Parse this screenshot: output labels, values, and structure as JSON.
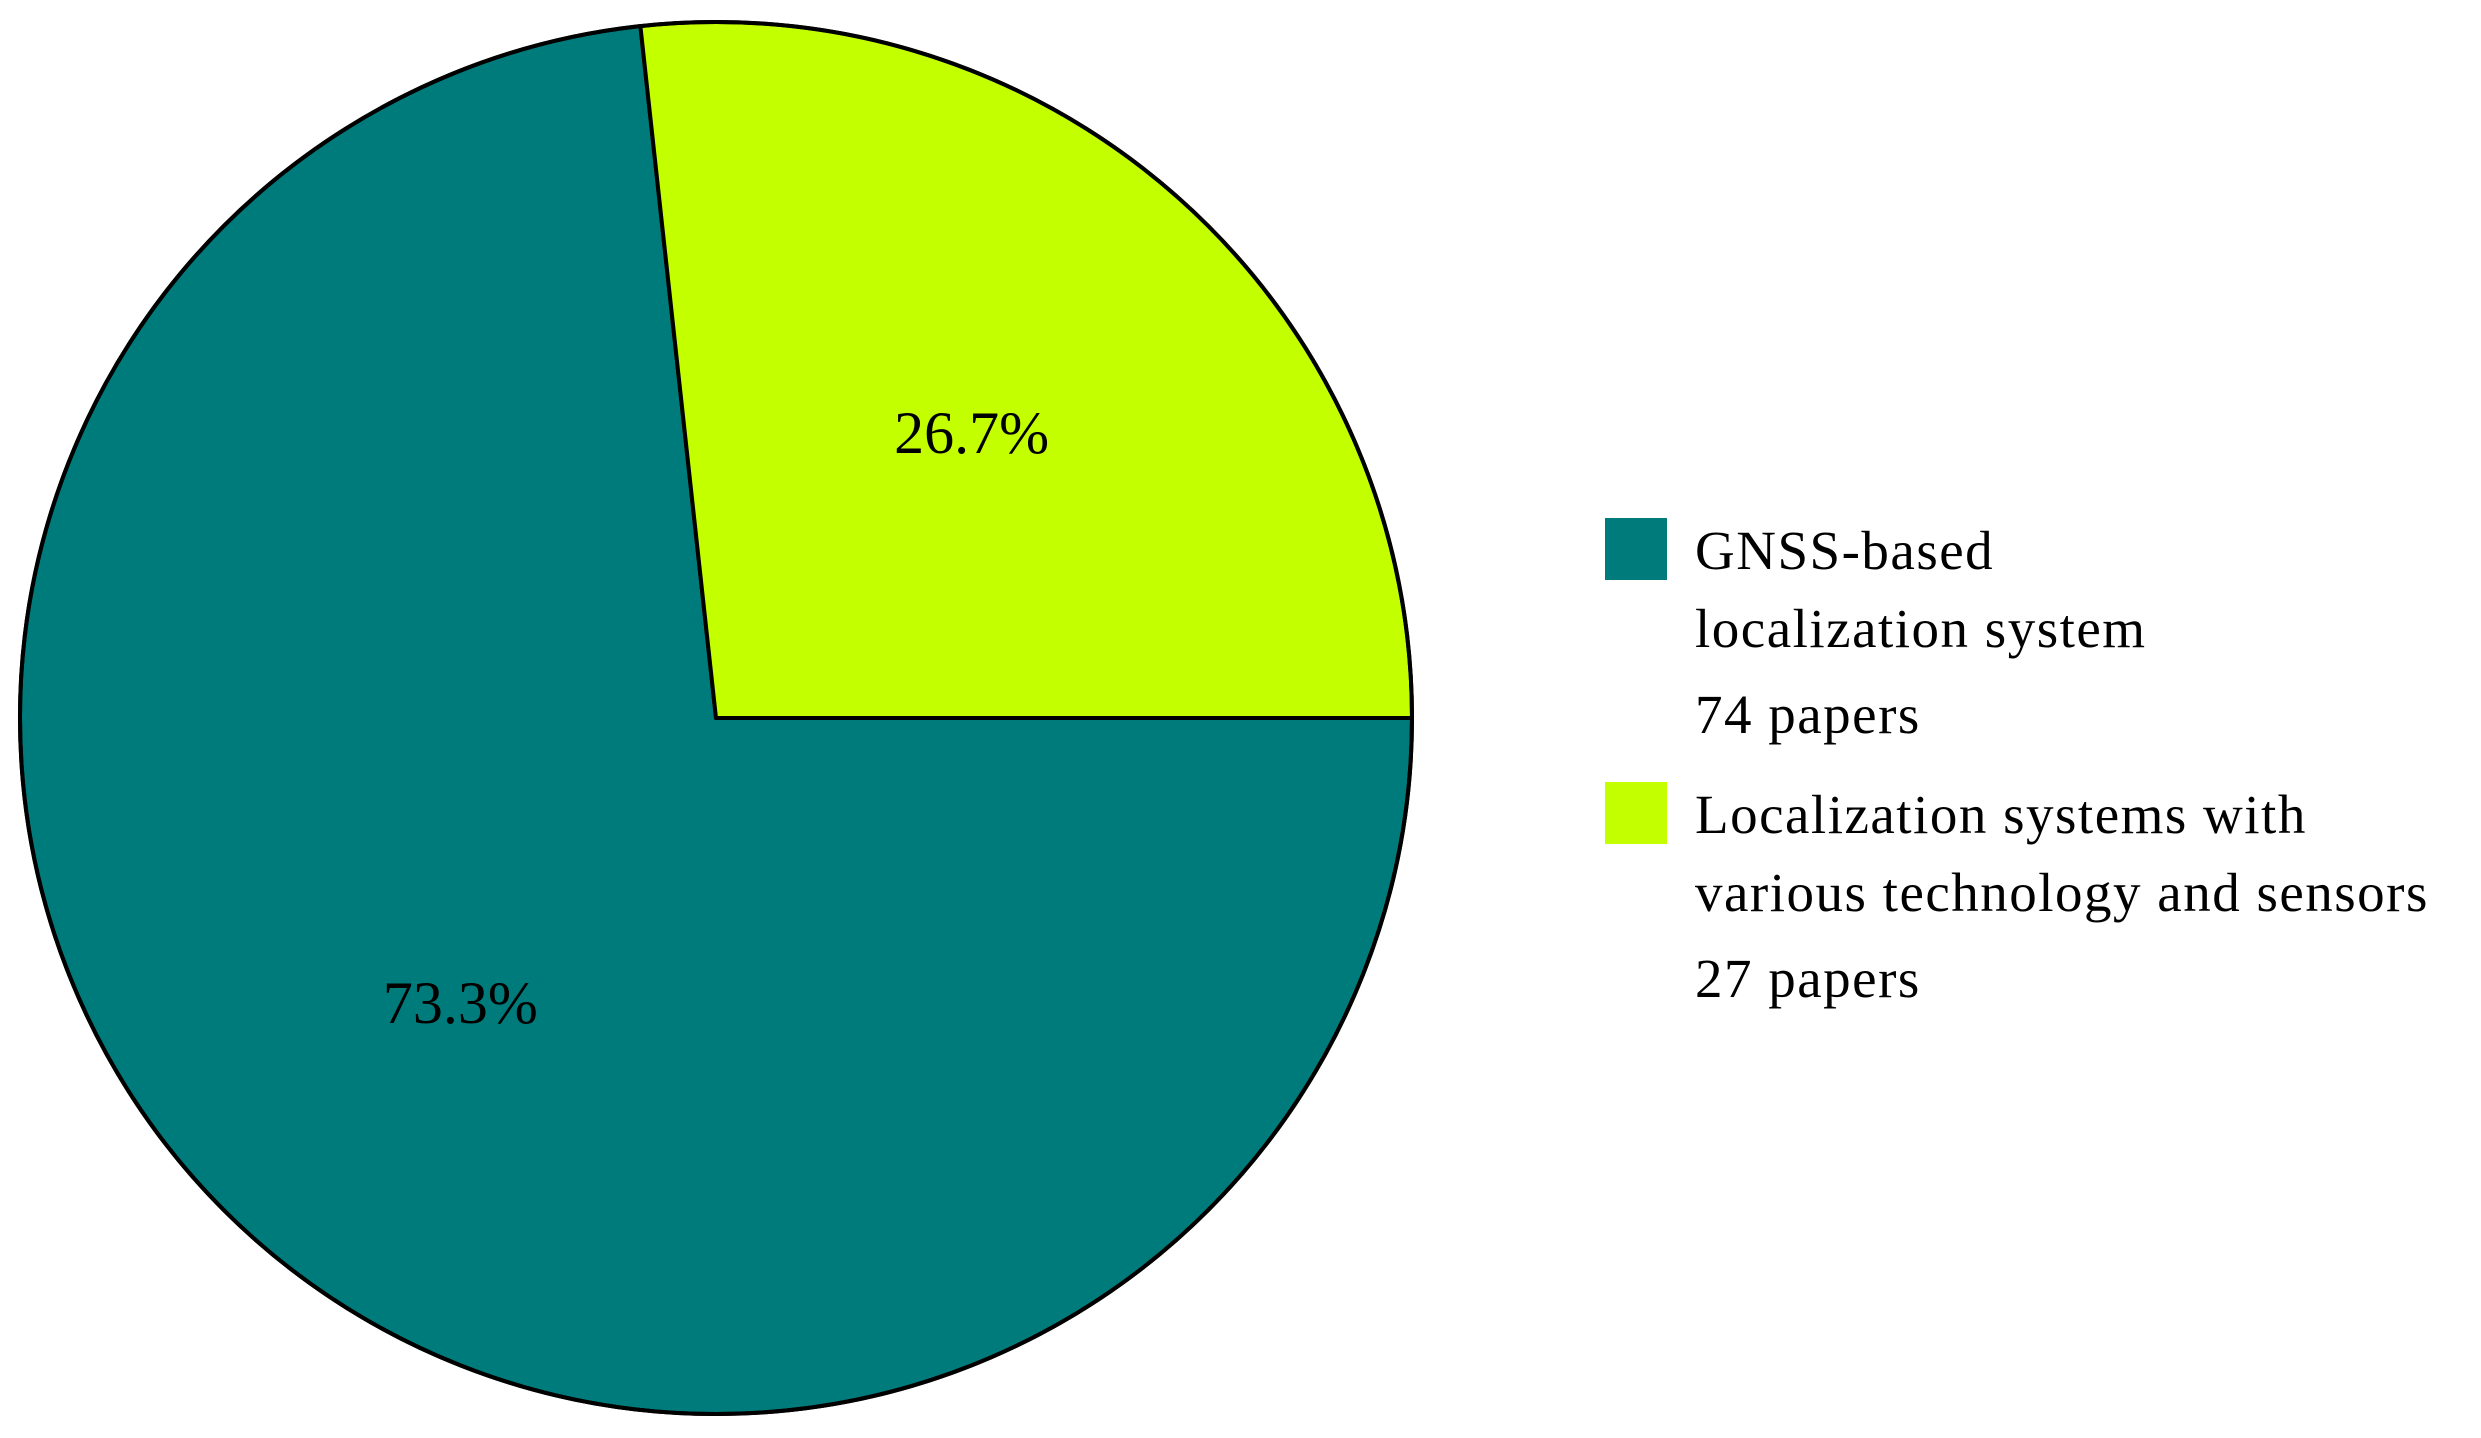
{
  "chart_data": {
    "type": "pie",
    "start_angle_deg": 0,
    "direction": "clockwise",
    "slices": [
      {
        "label_lines": [
          "GNSS-based",
          "localization system"
        ],
        "count_label": "74 papers",
        "value": 74,
        "percent_label": "73.3%",
        "color": "#007B7B"
      },
      {
        "label_lines": [
          "Localization systems with",
          "various technology and sensors"
        ],
        "count_label": "27 papers",
        "value": 27,
        "percent_label": "26.7%",
        "color": "#C4FF00"
      }
    ],
    "edge_color": "#000000",
    "legend_position": "right"
  }
}
